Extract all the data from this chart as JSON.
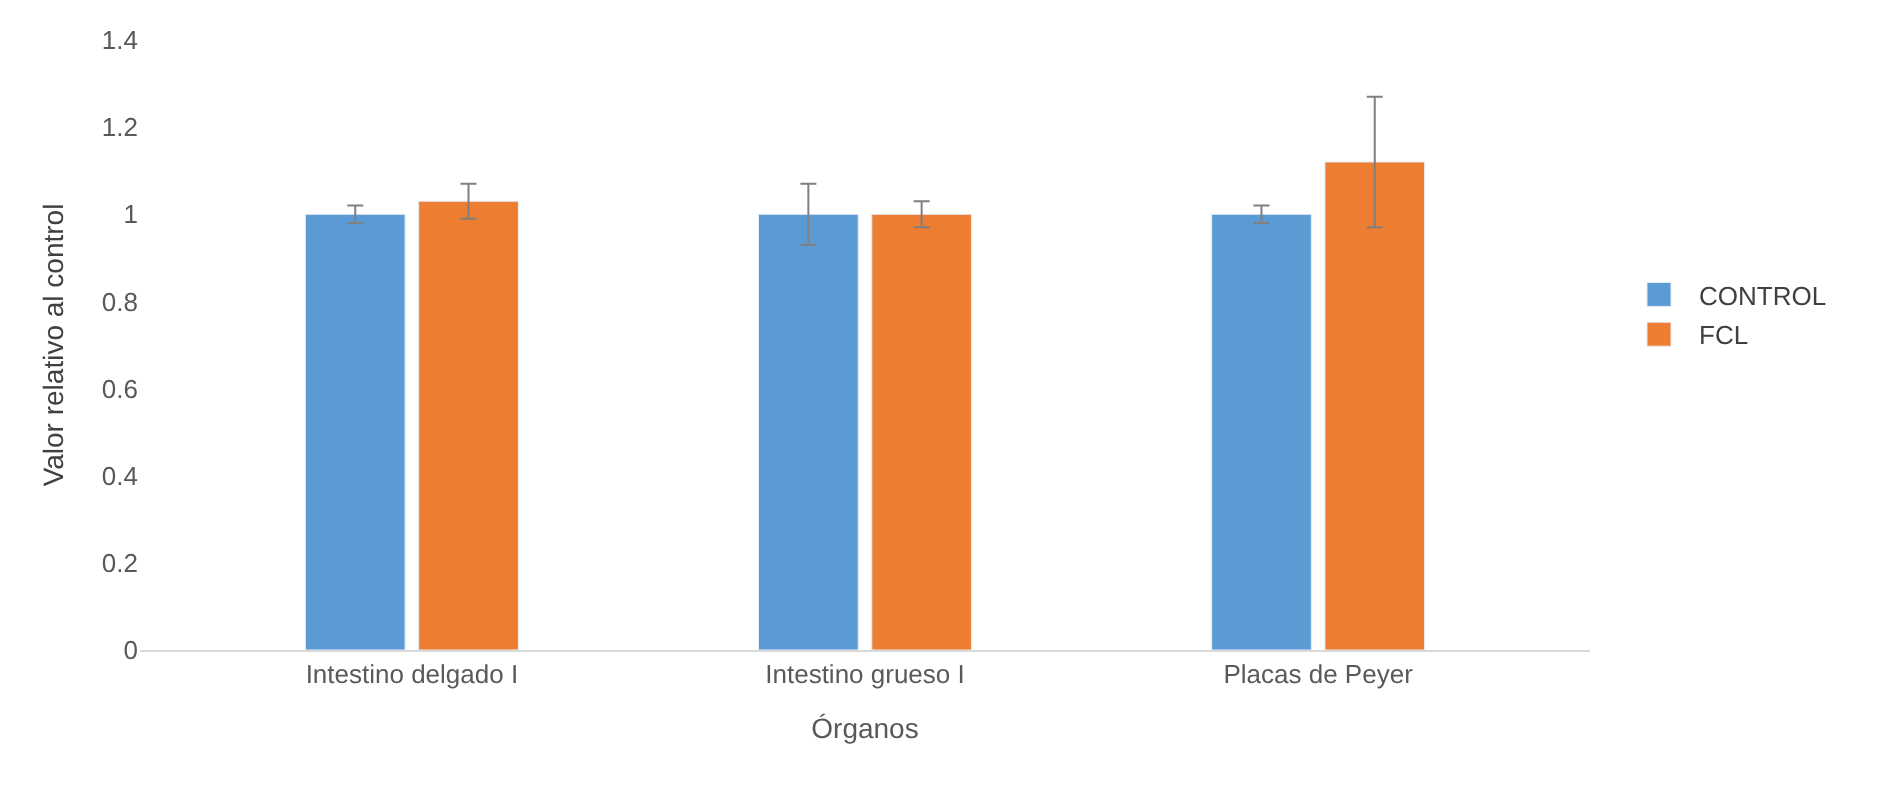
{
  "chart_data": {
    "type": "bar",
    "xlabel": "Órganos",
    "ylabel": "Valor relativo al control",
    "categories": [
      "Intestino delgado I",
      "Intestino grueso I",
      "Placas de Peyer"
    ],
    "series": [
      {
        "name": "CONTROL",
        "color": "#5b9bd5",
        "values": [
          1,
          1,
          1
        ],
        "errors": [
          0.02,
          0.07,
          0.02
        ]
      },
      {
        "name": "FCL",
        "color": "#ed7d31",
        "values": [
          1.03,
          1.0,
          1.12
        ],
        "errors": [
          0.04,
          0.03,
          0.15
        ]
      }
    ],
    "ylim": [
      0,
      1.4
    ],
    "yticks": [
      0,
      0.2,
      0.4,
      0.6,
      0.8,
      1,
      1.2,
      1.4
    ],
    "legend": "right"
  }
}
